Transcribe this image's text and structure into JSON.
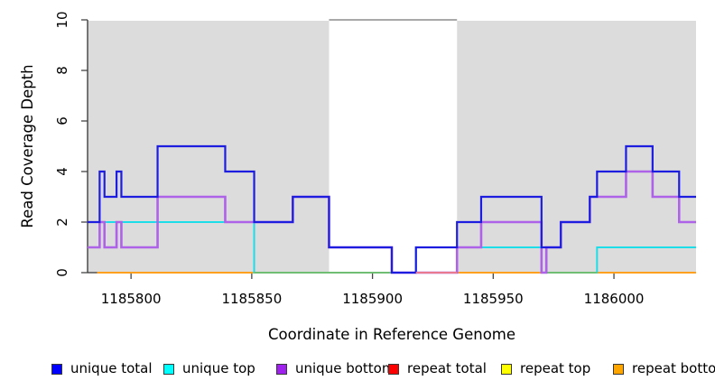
{
  "figure": {
    "background": "#FFFFFF",
    "axis_color": "#333333",
    "text_color": "#000000"
  },
  "chart_data": {
    "type": "line",
    "step": true,
    "title": "",
    "xlabel": "Coordinate in Reference Genome",
    "ylabel": "Read Coverage Depth",
    "xlim": [
      1185782,
      1186034
    ],
    "ylim": [
      0,
      10
    ],
    "x_ticks": [
      1185800,
      1185850,
      1185900,
      1185950,
      1186000
    ],
    "y_ticks": [
      0,
      2,
      4,
      6,
      8,
      10
    ],
    "grid": false,
    "legend_position": "bottom",
    "shaded_regions": [
      {
        "x1": 1185782,
        "x2": 1185882,
        "color": "#DCDCDC"
      },
      {
        "x1": 1185935,
        "x2": 1186034,
        "color": "#DCDCDC"
      }
    ],
    "repeat_region_bar": {
      "x1": 1185882,
      "x2": 1185935,
      "y": 10,
      "color": "#8C8C8C"
    },
    "layers": [
      {
        "kind": "step",
        "name": "repeat total",
        "color": "#DD2222",
        "lw": 1.5,
        "steps": [
          [
            1185786,
            0
          ]
        ],
        "end": 1186034
      },
      {
        "kind": "step",
        "name": "repeat top",
        "color": "#EEEE22",
        "lw": 1.5,
        "steps": [
          [
            1185786,
            0
          ]
        ],
        "end": 1186034
      },
      {
        "kind": "step",
        "name": "repeat bottom",
        "color": "#FFA01E",
        "lw": 2.0,
        "steps": [
          [
            1185786,
            0
          ]
        ],
        "end": 1186034
      },
      {
        "kind": "step",
        "name": "unique top",
        "color": "#1CDDE8",
        "lw": 2.0,
        "steps": [
          [
            1185782,
            1
          ],
          [
            1185787,
            2
          ],
          [
            1185851,
            0
          ],
          [
            1185918,
            1
          ],
          [
            1185972,
            0
          ],
          [
            1185993,
            1
          ]
        ],
        "end": 1186034
      },
      {
        "kind": "segment",
        "name": "baseline-blend-green-1",
        "color": "#6FBE73",
        "lw": 2.0,
        "x1": 1185851,
        "x2": 1185918,
        "y": 0
      },
      {
        "kind": "segment",
        "name": "baseline-blend-green-2",
        "color": "#6FBE73",
        "lw": 2.0,
        "x1": 1185972,
        "x2": 1185993,
        "y": 0
      },
      {
        "kind": "step",
        "name": "unique bottom",
        "color": "#AE62E8",
        "lw": 2.6,
        "steps": [
          [
            1185782,
            1
          ],
          [
            1185787,
            2
          ],
          [
            1185789,
            1
          ],
          [
            1185794,
            2
          ],
          [
            1185796,
            1
          ],
          [
            1185811,
            3
          ],
          [
            1185839,
            2
          ],
          [
            1185867,
            3
          ],
          [
            1185882,
            1
          ],
          [
            1185908,
            0
          ],
          [
            1185935,
            1
          ],
          [
            1185945,
            2
          ],
          [
            1185970,
            0
          ],
          [
            1185972,
            1
          ],
          [
            1185978,
            2
          ],
          [
            1185990,
            3
          ],
          [
            1186005,
            4
          ],
          [
            1186016,
            3
          ],
          [
            1186027,
            2
          ]
        ],
        "end": 1186034
      },
      {
        "kind": "step",
        "name": "unique total",
        "color": "#1D1DE0",
        "lw": 2.2,
        "steps": [
          [
            1185782,
            2
          ],
          [
            1185787,
            4
          ],
          [
            1185789,
            3
          ],
          [
            1185794,
            4
          ],
          [
            1185796,
            3
          ],
          [
            1185811,
            5
          ],
          [
            1185839,
            4
          ],
          [
            1185851,
            2
          ],
          [
            1185867,
            3
          ],
          [
            1185882,
            1
          ],
          [
            1185908,
            0
          ],
          [
            1185918,
            1
          ],
          [
            1185935,
            2
          ],
          [
            1185945,
            3
          ],
          [
            1185970,
            1
          ],
          [
            1185978,
            2
          ],
          [
            1185990,
            3
          ],
          [
            1185993,
            4
          ],
          [
            1186005,
            5
          ],
          [
            1186016,
            4
          ],
          [
            1186027,
            3
          ]
        ],
        "end": 1186034
      },
      {
        "kind": "segment",
        "name": "baseline-blend-pink",
        "color": "#E8798F",
        "lw": 2.0,
        "x1": 1185918,
        "x2": 1185935,
        "y": 0
      }
    ],
    "legend": {
      "items": [
        {
          "label": "unique total",
          "color": "#0000FF"
        },
        {
          "label": "unique top",
          "color": "#00FFFF"
        },
        {
          "label": "unique bottom",
          "color": "#A020F0"
        },
        {
          "label": "repeat total",
          "color": "#FF0000"
        },
        {
          "label": "repeat top",
          "color": "#FFFF00"
        },
        {
          "label": "repeat bottom",
          "color": "#FFA500"
        }
      ]
    }
  }
}
